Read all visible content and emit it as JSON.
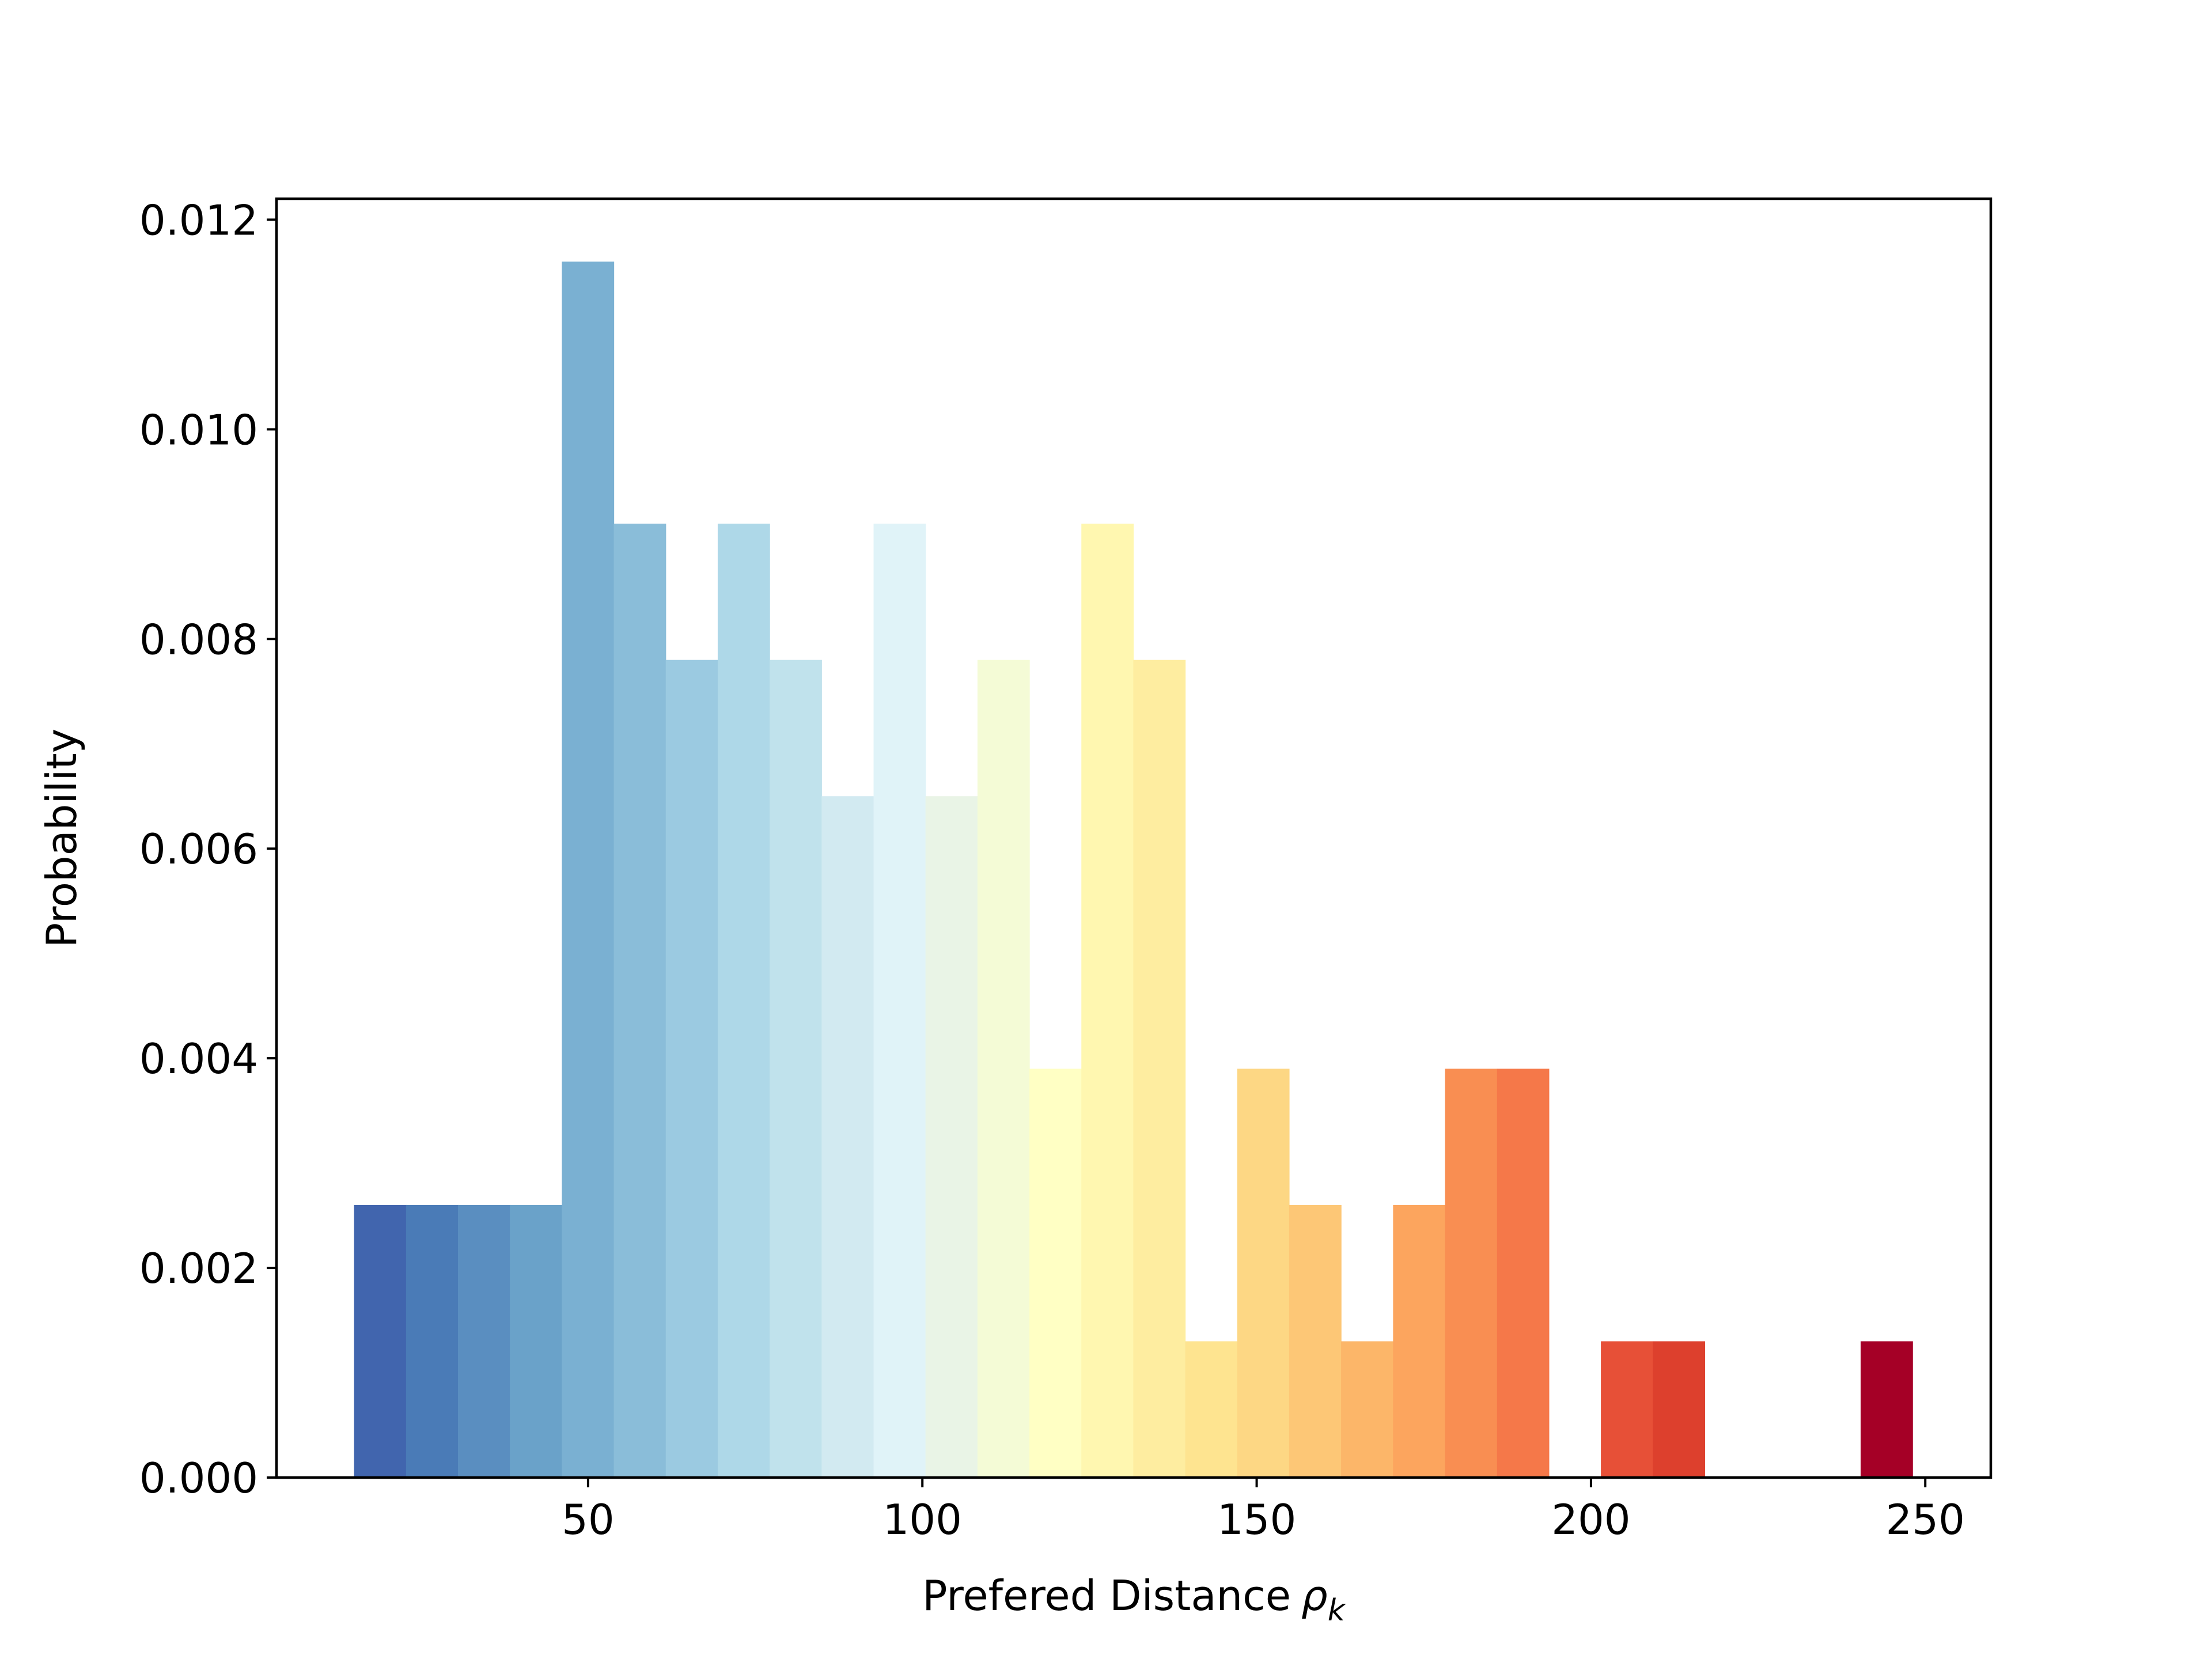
{
  "chart_data": {
    "type": "bar",
    "title": "",
    "xlabel": "Prefered Distance",
    "xlabel_symbol": "ρ",
    "xlabel_subscript": "k",
    "ylabel": "Probability",
    "xlim": [
      3.4,
      259.8
    ],
    "ylim": [
      0,
      0.0122
    ],
    "xticks": [
      50,
      100,
      150,
      200,
      250
    ],
    "yticks": [
      0,
      0.002,
      0.004,
      0.006,
      0.008,
      0.01,
      0.012
    ],
    "xtick_labels": [
      "50",
      "100",
      "150",
      "200",
      "250"
    ],
    "ytick_labels": [
      "0.000",
      "0.002",
      "0.004",
      "0.006",
      "0.008",
      "0.010",
      "0.012"
    ],
    "grid": false,
    "bin_edges": [
      15.0,
      22.77,
      30.54,
      38.31,
      46.08,
      53.85,
      61.62,
      69.39,
      77.16,
      84.93,
      92.7,
      100.47,
      108.24,
      116.01,
      123.78,
      131.55,
      139.32,
      147.09,
      154.86,
      162.63,
      170.4,
      178.17,
      185.94,
      193.71,
      201.48,
      209.25,
      217.02,
      224.79,
      232.56,
      240.33,
      248.1
    ],
    "values": [
      0.0026,
      0.0026,
      0.0026,
      0.0026,
      0.0116,
      0.0091,
      0.0078,
      0.0091,
      0.0078,
      0.0065,
      0.0091,
      0.0065,
      0.0078,
      0.0039,
      0.0091,
      0.0078,
      0.0013,
      0.0039,
      0.0026,
      0.0013,
      0.0026,
      0.0039,
      0.0039,
      0.0,
      0.0013,
      0.0013,
      0.0,
      0.0,
      0.0,
      0.0013
    ],
    "colors": [
      "#4165ae",
      "#4a7bb7",
      "#5a8ec0",
      "#6aa2c9",
      "#7ab0d2",
      "#8abdd9",
      "#9bcae1",
      "#aed8e8",
      "#c0e2ec",
      "#d2eaf1",
      "#e0f3f8",
      "#e9f4e6",
      "#f4fbd6",
      "#ffffc4",
      "#fff7b0",
      "#feeda0",
      "#fee490",
      "#fdd784",
      "#fdc776",
      "#fcb669",
      "#fca55e",
      "#f98e52",
      "#f57849",
      "#ef6141",
      "#e75037",
      "#dd402d",
      "#d13026",
      "#c01f26",
      "#b1102a",
      "#a50026"
    ]
  }
}
